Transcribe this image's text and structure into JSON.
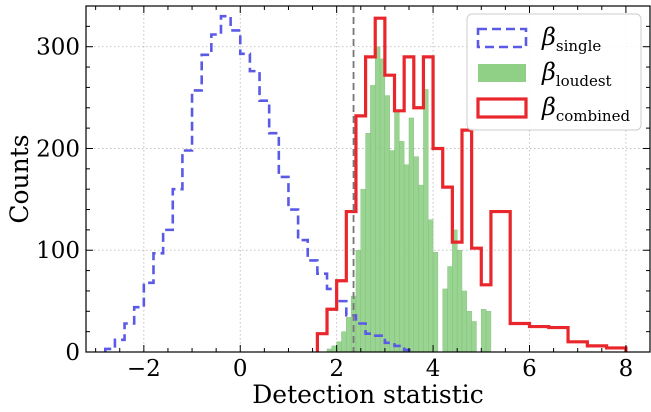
{
  "chart_data": {
    "type": "histogram",
    "xlabel": "Detection statistic",
    "ylabel": "Counts",
    "xlim": [
      -3.2,
      8.5
    ],
    "ylim": [
      0,
      340
    ],
    "xticks": [
      -2,
      0,
      2,
      4,
      6,
      8
    ],
    "yticks": [
      0,
      100,
      200,
      300
    ],
    "xtick_labels": [
      "−2",
      "0",
      "2",
      "4",
      "6",
      "8"
    ],
    "ytick_labels": [
      "0",
      "100",
      "200",
      "300"
    ],
    "grid": true,
    "legend_position": "top-right",
    "threshold_line": {
      "x": 2.35,
      "color": "#777777",
      "style": "dashed"
    },
    "series": [
      {
        "name": "β",
        "subscript": "single",
        "style": "step-dashed",
        "color": "#5a5ae6",
        "edges": [
          -2.8,
          -2.6,
          -2.4,
          -2.2,
          -2.0,
          -1.8,
          -1.6,
          -1.4,
          -1.2,
          -1.0,
          -0.8,
          -0.6,
          -0.4,
          -0.2,
          0.0,
          0.2,
          0.4,
          0.6,
          0.8,
          1.0,
          1.2,
          1.4,
          1.6,
          1.8,
          2.0,
          2.2,
          2.4,
          2.6,
          2.8,
          3.0,
          3.2,
          3.4,
          3.6
        ],
        "values": [
          3,
          12,
          28,
          44,
          68,
          97,
          120,
          160,
          198,
          257,
          292,
          312,
          330,
          316,
          293,
          276,
          247,
          215,
          172,
          140,
          110,
          90,
          77,
          62,
          50,
          36,
          28,
          18,
          16,
          9,
          6,
          2
        ]
      },
      {
        "name": "β",
        "subscript": "loudest",
        "style": "bars",
        "color": "#8fcf86",
        "edges": [
          1.8,
          1.9,
          2.0,
          2.1,
          2.2,
          2.3,
          2.4,
          2.5,
          2.6,
          2.7,
          2.8,
          2.9,
          3.0,
          3.1,
          3.2,
          3.3,
          3.4,
          3.5,
          3.6,
          3.7,
          3.8,
          3.9,
          4.0,
          4.1,
          4.2,
          4.3,
          4.4,
          4.5,
          4.6,
          4.7,
          4.8,
          4.9,
          5.0,
          5.1,
          5.2
        ],
        "values": [
          3,
          6,
          10,
          20,
          34,
          55,
          100,
          160,
          215,
          262,
          300,
          288,
          252,
          198,
          238,
          207,
          184,
          230,
          192,
          164,
          258,
          130,
          98,
          0,
          62,
          84,
          120,
          100,
          60,
          40,
          30,
          0,
          42,
          40
        ]
      },
      {
        "name": "β",
        "subscript": "combined",
        "style": "step",
        "color": "#e8262b",
        "edges": [
          1.6,
          1.8,
          2.0,
          2.2,
          2.4,
          2.6,
          2.8,
          3.0,
          3.2,
          3.4,
          3.6,
          3.8,
          4.0,
          4.2,
          4.4,
          4.6,
          4.8,
          5.0,
          5.2,
          5.6,
          6.0,
          6.4,
          6.8,
          7.2,
          7.6,
          8.0
        ],
        "values": [
          18,
          42,
          70,
          138,
          232,
          290,
          328,
          272,
          237,
          290,
          240,
          290,
          200,
          162,
          108,
          218,
          102,
          66,
          138,
          28,
          25,
          24,
          10,
          6,
          4
        ]
      }
    ]
  }
}
